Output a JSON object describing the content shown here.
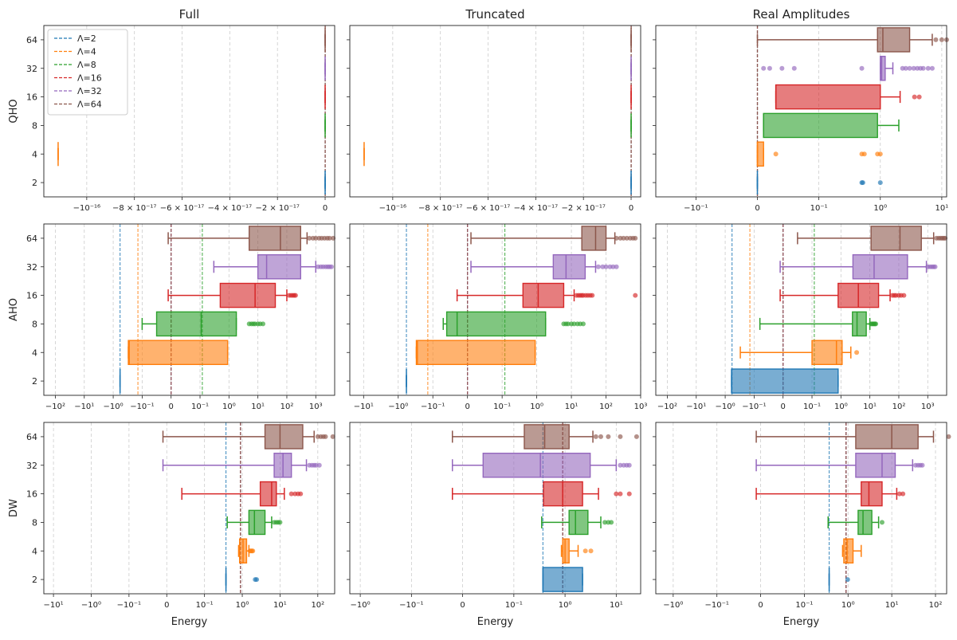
{
  "chart_data": {
    "type": "box",
    "columns": [
      "Full",
      "Truncated",
      "Real Amplitudes"
    ],
    "rows": [
      "QHO",
      "AHO",
      "DW"
    ],
    "xlabel": "Energy",
    "categories": [
      "2",
      "4",
      "8",
      "16",
      "32",
      "64"
    ],
    "legend": {
      "placement": "top-left",
      "entries": [
        "Λ=2",
        "Λ=4",
        "Λ=8",
        "Λ=16",
        "Λ=32",
        "Λ=64"
      ]
    },
    "colors": [
      "#1f77b4",
      "#ff7f0e",
      "#2ca02c",
      "#d62728",
      "#9467bd",
      "#8c564b"
    ],
    "panels": [
      {
        "row": "QHO",
        "column": "Full",
        "xticks": [
          "−10⁻¹⁶",
          "−8 × 10⁻¹⁷",
          "−6 × 10⁻¹⁷",
          "−4 × 10⁻¹⁷",
          "−2 × 10⁻¹⁷",
          "0"
        ],
        "reference_lines": [
          0,
          0,
          0,
          0,
          0,
          0
        ],
        "boxes": [
          {
            "cutoff": "2",
            "q1": 0,
            "median": 0,
            "q3": 0,
            "whisker_low": 0,
            "whisker_high": 0,
            "outliers": []
          },
          {
            "cutoff": "4",
            "q1": -1.12e-16,
            "median": -1.12e-16,
            "q3": -1.12e-16,
            "whisker_low": -1.12e-16,
            "whisker_high": -1.12e-16,
            "outliers": []
          },
          {
            "cutoff": "8",
            "q1": 0,
            "median": 0,
            "q3": 0,
            "whisker_low": 0,
            "whisker_high": 0,
            "outliers": []
          },
          {
            "cutoff": "16",
            "q1": 0,
            "median": 0,
            "q3": 0,
            "whisker_low": 0,
            "whisker_high": 0,
            "outliers": []
          },
          {
            "cutoff": "32",
            "q1": 0,
            "median": 0,
            "q3": 0,
            "whisker_low": 0,
            "whisker_high": 0,
            "outliers": []
          },
          {
            "cutoff": "64",
            "q1": 0,
            "median": 0,
            "q3": 0,
            "whisker_low": 0,
            "whisker_high": 0,
            "outliers": []
          }
        ]
      },
      {
        "row": "QHO",
        "column": "Truncated",
        "xticks": [
          "−10⁻¹⁶",
          "−8 × 10⁻¹⁷",
          "−6 × 10⁻¹⁷",
          "−4 × 10⁻¹⁷",
          "−2 × 10⁻¹⁷",
          "0"
        ],
        "reference_lines": [
          0,
          0,
          0,
          0,
          0,
          0
        ],
        "boxes": [
          {
            "cutoff": "2",
            "q1": 0,
            "median": 0,
            "q3": 0,
            "whisker_low": 0,
            "whisker_high": 0,
            "outliers": []
          },
          {
            "cutoff": "4",
            "q1": -1.12e-16,
            "median": -1.12e-16,
            "q3": -1.12e-16,
            "whisker_low": -1.12e-16,
            "whisker_high": -1.12e-16,
            "outliers": []
          },
          {
            "cutoff": "8",
            "q1": 0,
            "median": 0,
            "q3": 0,
            "whisker_low": 0,
            "whisker_high": 0,
            "outliers": []
          },
          {
            "cutoff": "16",
            "q1": 0,
            "median": 0,
            "q3": 0,
            "whisker_low": 0,
            "whisker_high": 0,
            "outliers": []
          },
          {
            "cutoff": "32",
            "q1": 0,
            "median": 0,
            "q3": 0,
            "whisker_low": 0,
            "whisker_high": 0,
            "outliers": []
          },
          {
            "cutoff": "64",
            "q1": 0,
            "median": 0,
            "q3": 0,
            "whisker_low": 0,
            "whisker_high": 0,
            "outliers": []
          }
        ]
      },
      {
        "row": "QHO",
        "column": "Real Amplitudes",
        "xticks": [
          "−10⁻¹",
          "0",
          "10⁻¹",
          "10⁰",
          "10¹"
        ],
        "reference_lines": [
          0,
          0,
          0,
          0,
          0,
          0
        ],
        "boxes": [
          {
            "cutoff": "2",
            "q1": 0,
            "median": 0,
            "q3": 0,
            "whisker_low": 0,
            "whisker_high": 0,
            "outliers": [
              0.5,
              0.52,
              1.0
            ]
          },
          {
            "cutoff": "4",
            "q1": 0,
            "median": 0,
            "q3": 0.01,
            "whisker_low": 0,
            "whisker_high": 0.01,
            "outliers": [
              0.03,
              0.5,
              0.55,
              0.9,
              1.0
            ]
          },
          {
            "cutoff": "8",
            "q1": 0.01,
            "median": 0.01,
            "q3": 0.9,
            "whisker_low": 0.01,
            "whisker_high": 2.0,
            "outliers": []
          },
          {
            "cutoff": "16",
            "q1": 0.03,
            "median": 0.03,
            "q3": 1.0,
            "whisker_low": 0.03,
            "whisker_high": 2.1,
            "outliers": [
              3.6,
              4.3
            ]
          },
          {
            "cutoff": "32",
            "q1": 1.0,
            "median": 1.05,
            "q3": 1.2,
            "whisker_low": 1.0,
            "whisker_high": 1.6,
            "outliers": [
              0.01,
              0.02,
              0.04,
              0.06,
              0.5,
              2.3,
              2.6,
              3.0,
              3.5,
              4.0,
              4.5,
              5.0,
              6.0,
              7.0
            ]
          },
          {
            "cutoff": "64",
            "q1": 0.9,
            "median": 1.1,
            "q3": 3.0,
            "whisker_low": 0,
            "whisker_high": 7.0,
            "outliers": [
              8.0,
              10.0,
              12.0
            ]
          }
        ]
      },
      {
        "row": "AHO",
        "column": "Full",
        "xticks": [
          "−10²",
          "−10¹",
          "−10⁰",
          "−10⁻¹",
          "0",
          "10⁻¹",
          "10⁰",
          "10¹",
          "10²",
          "10³"
        ],
        "reference_lines": [
          -0.58,
          -0.14,
          0.12,
          0,
          0,
          0
        ],
        "boxes": [
          {
            "cutoff": "2",
            "q1": -0.58,
            "median": -0.58,
            "q3": -0.58,
            "whisker_low": -0.58,
            "whisker_high": -0.58,
            "outliers": []
          },
          {
            "cutoff": "4",
            "q1": -0.3,
            "median": -0.28,
            "q3": 0.9,
            "whisker_low": -0.3,
            "whisker_high": 0.9,
            "outliers": []
          },
          {
            "cutoff": "8",
            "q1": -0.05,
            "median": 0.11,
            "q3": 1.8,
            "whisker_low": -0.1,
            "whisker_high": 1.8,
            "outliers": [
              5,
              6,
              7,
              8,
              10,
              12,
              15
            ]
          },
          {
            "cutoff": "16",
            "q1": 0.5,
            "median": 8,
            "q3": 40,
            "whisker_low": -0.01,
            "whisker_high": 100,
            "outliers": [
              120,
              140,
              160,
              180,
              200
            ]
          },
          {
            "cutoff": "32",
            "q1": 10,
            "median": 20,
            "q3": 300,
            "whisker_low": 0.3,
            "whisker_high": 1000,
            "outliers": [
              1200,
              1500,
              1800,
              2200,
              2600,
              3000,
              3500
            ]
          },
          {
            "cutoff": "64",
            "q1": 5,
            "median": 60,
            "q3": 300,
            "whisker_low": -0.01,
            "whisker_high": 500,
            "outliers": [
              600,
              800,
              1000,
              1300,
              1600,
              2000,
              2500,
              3000,
              4000
            ]
          }
        ]
      },
      {
        "row": "AHO",
        "column": "Truncated",
        "xticks": [
          "−10¹",
          "−10⁰",
          "−10⁻¹",
          "0",
          "10⁻¹",
          "10⁰",
          "10¹",
          "10²",
          "10³"
        ],
        "reference_lines": [
          -0.58,
          -0.14,
          0.12,
          0,
          0,
          0
        ],
        "boxes": [
          {
            "cutoff": "2",
            "q1": -0.58,
            "median": -0.58,
            "q3": -0.58,
            "whisker_low": -0.58,
            "whisker_high": -0.58,
            "outliers": []
          },
          {
            "cutoff": "4",
            "q1": -0.3,
            "median": -0.28,
            "q3": 0.9,
            "whisker_low": -0.3,
            "whisker_high": 0.9,
            "outliers": []
          },
          {
            "cutoff": "8",
            "q1": -0.06,
            "median": -0.03,
            "q3": 1.8,
            "whisker_low": -0.07,
            "whisker_high": 1.8,
            "outliers": [
              6,
              7,
              8,
              10,
              12,
              15,
              18,
              22
            ]
          },
          {
            "cutoff": "16",
            "q1": 0.4,
            "median": 1.1,
            "q3": 6,
            "whisker_low": -0.03,
            "whisker_high": 12,
            "outliers": [
              14,
              16,
              18,
              20,
              22,
              26,
              30,
              35,
              40,
              700
            ]
          },
          {
            "cutoff": "32",
            "q1": 3,
            "median": 7,
            "q3": 25,
            "whisker_low": 0.01,
            "whisker_high": 50,
            "outliers": [
              60,
              80,
              100,
              130,
              160,
              200
            ]
          },
          {
            "cutoff": "64",
            "q1": 20,
            "median": 50,
            "q3": 100,
            "whisker_low": 0.01,
            "whisker_high": 180,
            "outliers": [
              200,
              260,
              320,
              400,
              500,
              600,
              700
            ]
          }
        ]
      },
      {
        "row": "AHO",
        "column": "Real Amplitudes",
        "xticks": [
          "−10²",
          "−10¹",
          "−10⁰",
          "−10⁻¹",
          "0",
          "10⁻¹",
          "10⁰",
          "10¹",
          "10²",
          "10³"
        ],
        "reference_lines": [
          -0.58,
          -0.14,
          0.12,
          0,
          0,
          0
        ],
        "boxes": [
          {
            "cutoff": "2",
            "q1": -0.6,
            "median": -0.6,
            "q3": 0.8,
            "whisker_low": -0.6,
            "whisker_high": 0.8,
            "outliers": []
          },
          {
            "cutoff": "4",
            "q1": 0.1,
            "median": 0.7,
            "q3": 1.1,
            "whisker_low": -0.3,
            "whisker_high": 2.2,
            "outliers": [
              3.5
            ]
          },
          {
            "cutoff": "8",
            "q1": 2.5,
            "median": 3.6,
            "q3": 7.5,
            "whisker_low": -0.08,
            "whisker_high": 10,
            "outliers": [
              11,
              12,
              13,
              14,
              15,
              16
            ]
          },
          {
            "cutoff": "16",
            "q1": 0.8,
            "median": 4,
            "q3": 20,
            "whisker_low": -0.01,
            "whisker_high": 50,
            "outliers": [
              60,
              70,
              80,
              100,
              120,
              150
            ]
          },
          {
            "cutoff": "32",
            "q1": 2.6,
            "median": 14,
            "q3": 200,
            "whisker_low": -0.01,
            "whisker_high": 900,
            "outliers": [
              1000,
              1200,
              1400,
              1600,
              1800
            ]
          },
          {
            "cutoff": "64",
            "q1": 11,
            "median": 110,
            "q3": 600,
            "whisker_low": 0.05,
            "whisker_high": 1600,
            "outliers": [
              2000,
              2400,
              2800,
              3200,
              3600,
              4000
            ]
          }
        ]
      },
      {
        "row": "DW",
        "column": "Full",
        "xticks": [
          "−10¹",
          "−10⁰",
          "−10⁻¹",
          "0",
          "10⁻¹",
          "10⁰",
          "10¹",
          "10²"
        ],
        "reference_lines": [
          0.37,
          0.9,
          0.9,
          0.9,
          0.9,
          0.9
        ],
        "boxes": [
          {
            "cutoff": "2",
            "q1": 0.37,
            "median": 0.37,
            "q3": 0.37,
            "whisker_low": 0.37,
            "whisker_high": 0.37,
            "outliers": [
              2.2,
              2.4
            ]
          },
          {
            "cutoff": "4",
            "q1": 0.85,
            "median": 1.05,
            "q3": 1.3,
            "whisker_low": 0.8,
            "whisker_high": 1.5,
            "outliers": [
              1.6,
              1.7,
              1.8,
              1.9
            ]
          },
          {
            "cutoff": "8",
            "q1": 1.5,
            "median": 2.1,
            "q3": 4,
            "whisker_low": 0.4,
            "whisker_high": 6,
            "outliers": [
              7,
              8,
              9,
              10
            ]
          },
          {
            "cutoff": "16",
            "q1": 3,
            "median": 6,
            "q3": 8,
            "whisker_low": 0.04,
            "whisker_high": 13,
            "outliers": [
              20,
              25,
              30,
              35
            ]
          },
          {
            "cutoff": "32",
            "q1": 7,
            "median": 12,
            "q3": 20,
            "whisker_low": -0.01,
            "whisker_high": 50,
            "outliers": [
              60,
              70,
              80,
              90,
              110
            ]
          },
          {
            "cutoff": "64",
            "q1": 4,
            "median": 10,
            "q3": 40,
            "whisker_low": -0.01,
            "whisker_high": 80,
            "outliers": [
              100,
              120,
              140,
              160,
              250
            ]
          }
        ]
      },
      {
        "row": "DW",
        "column": "Truncated",
        "xticks": [
          "−10⁰",
          "−10⁻¹",
          "0",
          "10⁻¹",
          "10⁰",
          "10¹"
        ],
        "reference_lines": [
          0.37,
          0.9,
          0.9,
          0.9,
          0.9,
          0.9
        ],
        "boxes": [
          {
            "cutoff": "2",
            "q1": 0.37,
            "median": 0.37,
            "q3": 2.2,
            "whisker_low": 0.37,
            "whisker_high": 2.2,
            "outliers": []
          },
          {
            "cutoff": "4",
            "q1": 0.9,
            "median": 1.0,
            "q3": 1.2,
            "whisker_low": 0.85,
            "whisker_high": 1.8,
            "outliers": [
              2.5,
              3.2
            ]
          },
          {
            "cutoff": "8",
            "q1": 1.2,
            "median": 1.6,
            "q3": 2.8,
            "whisker_low": 0.35,
            "whisker_high": 5,
            "outliers": [
              6,
              7,
              8
            ]
          },
          {
            "cutoff": "16",
            "q1": 0.38,
            "median": 0.9,
            "q3": 2.2,
            "whisker_low": -0.02,
            "whisker_high": 4.5,
            "outliers": [
              10,
              12,
              18
            ]
          },
          {
            "cutoff": "32",
            "q1": 0.04,
            "median": 0.33,
            "q3": 3.1,
            "whisker_low": -0.02,
            "whisker_high": 10,
            "outliers": [
              12,
              14,
              16,
              18
            ]
          },
          {
            "cutoff": "64",
            "q1": 0.16,
            "median": 0.4,
            "q3": 1.2,
            "whisker_low": -0.02,
            "whisker_high": 3.5,
            "outliers": [
              4,
              5,
              7,
              12,
              25
            ]
          }
        ]
      },
      {
        "row": "DW",
        "column": "Real Amplitudes",
        "xticks": [
          "−10⁰",
          "−10⁻¹",
          "0",
          "10⁻¹",
          "10⁰",
          "10¹",
          "10²"
        ],
        "reference_lines": [
          0.37,
          0.9,
          0.9,
          0.9,
          0.9,
          0.9
        ],
        "boxes": [
          {
            "cutoff": "2",
            "q1": 0.37,
            "median": 0.37,
            "q3": 0.37,
            "whisker_low": 0.37,
            "whisker_high": 0.37,
            "outliers": [
              0.98
            ]
          },
          {
            "cutoff": "4",
            "q1": 0.8,
            "median": 0.95,
            "q3": 1.3,
            "whisker_low": 0.75,
            "whisker_high": 2.0,
            "outliers": []
          },
          {
            "cutoff": "8",
            "q1": 1.7,
            "median": 2.2,
            "q3": 3.5,
            "whisker_low": 0.35,
            "whisker_high": 5,
            "outliers": [
              6
            ]
          },
          {
            "cutoff": "16",
            "q1": 2,
            "median": 3,
            "q3": 6,
            "whisker_low": -0.01,
            "whisker_high": 13,
            "outliers": [
              15,
              18
            ]
          },
          {
            "cutoff": "32",
            "q1": 1.5,
            "median": 6,
            "q3": 12,
            "whisker_low": -0.01,
            "whisker_high": 30,
            "outliers": [
              35,
              40,
              45,
              50
            ]
          },
          {
            "cutoff": "64",
            "q1": 1.5,
            "median": 10,
            "q3": 40,
            "whisker_low": -0.01,
            "whisker_high": 90,
            "outliers": [
              200
            ]
          }
        ]
      }
    ]
  }
}
